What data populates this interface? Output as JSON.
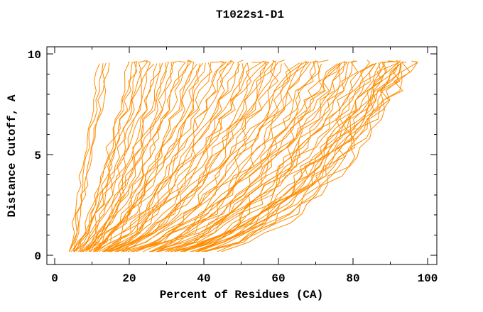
{
  "page": {
    "background": "#ffffff"
  },
  "chart_data": {
    "type": "line",
    "title": "T1022s1-D1",
    "xlabel": "Percent of Residues (CA)",
    "ylabel": "Distance Cutoff, A",
    "xlim": [
      -2,
      102.5
    ],
    "ylim": [
      -0.45,
      10.4
    ],
    "x_major_ticks": [
      0,
      20,
      40,
      60,
      80,
      100
    ],
    "x_minor_ticks": [
      10,
      30,
      50,
      70,
      90
    ],
    "y_major_ticks": [
      0,
      5,
      10
    ],
    "y_minor_ticks": [
      1,
      2,
      3,
      4,
      6,
      7,
      8,
      9
    ],
    "grid": false,
    "legend": "none",
    "series_color": "#ff8c00",
    "series_count": 91,
    "description": "Family of per-model accuracy curves: percent of CA residues (x) fitting under each distance cutoff in Angstroms (y). Each curve rises from ~0.2 A near 4-35% of residues to ~9.6 A, topping out between ~12% and ~96%.",
    "curve_model": {
      "formula": "x(y) = x0 + (x1 - x0) * (y / ytop)^shape, jagged piecewise-linear sampling",
      "y_start": 0.18,
      "y_step": 0.47,
      "y_top_range": [
        9.5,
        9.7
      ],
      "fields": [
        "x0_percent_at_bottom",
        "x1_percent_at_top",
        "shape_exponent"
      ]
    },
    "curves": [
      [
        3.5,
        11.5,
        0.9
      ],
      [
        4,
        12.5,
        0.85
      ],
      [
        4.2,
        13.5,
        0.8
      ],
      [
        3.8,
        14.5,
        0.88
      ],
      [
        4.5,
        20,
        0.75
      ],
      [
        5,
        21,
        0.8
      ],
      [
        4.8,
        21.8,
        0.7
      ],
      [
        5.5,
        22.6,
        0.78
      ],
      [
        4.2,
        23.4,
        0.72
      ],
      [
        5,
        24,
        0.7
      ],
      [
        6,
        25,
        0.65
      ],
      [
        4.6,
        26,
        0.75
      ],
      [
        7,
        27,
        0.6
      ],
      [
        5.2,
        28,
        0.72
      ],
      [
        6.5,
        29,
        0.68
      ],
      [
        4.4,
        30,
        0.62
      ],
      [
        7.5,
        31,
        0.7
      ],
      [
        5.8,
        32,
        0.58
      ],
      [
        6.2,
        33,
        0.74
      ],
      [
        8,
        34,
        0.6
      ],
      [
        5,
        35,
        0.66
      ],
      [
        7.2,
        36,
        0.7
      ],
      [
        6,
        37,
        0.55
      ],
      [
        8.5,
        38,
        0.65
      ],
      [
        5.4,
        39,
        0.6
      ],
      [
        9,
        40,
        0.68
      ],
      [
        6.8,
        41,
        0.58
      ],
      [
        7.6,
        42,
        0.64
      ],
      [
        10,
        43,
        0.6
      ],
      [
        6.4,
        44,
        0.7
      ],
      [
        8.2,
        45,
        0.55
      ],
      [
        9.5,
        46,
        0.62
      ],
      [
        7,
        47,
        0.66
      ],
      [
        10.5,
        48,
        0.58
      ],
      [
        8,
        49.5,
        0.6
      ],
      [
        9,
        50,
        0.6
      ],
      [
        11,
        51,
        0.64
      ],
      [
        9,
        52.5,
        0.56
      ],
      [
        8.8,
        53,
        0.58
      ],
      [
        12,
        54,
        0.6
      ],
      [
        10,
        55.5,
        0.62
      ],
      [
        12.5,
        56,
        0.56
      ],
      [
        13,
        57,
        0.55
      ],
      [
        11.5,
        58.5,
        0.58
      ],
      [
        10.8,
        59,
        0.54
      ],
      [
        12,
        60,
        0.55
      ],
      [
        14,
        61,
        0.5
      ],
      [
        10,
        62,
        0.58
      ],
      [
        16,
        63,
        0.52
      ],
      [
        12.5,
        64,
        0.55
      ],
      [
        18,
        65,
        0.48
      ],
      [
        13,
        66,
        0.56
      ],
      [
        20,
        67,
        0.5
      ],
      [
        14.5,
        68,
        0.52
      ],
      [
        11,
        69,
        0.58
      ],
      [
        22,
        70,
        0.46
      ],
      [
        15,
        71,
        0.54
      ],
      [
        17,
        72,
        0.5
      ],
      [
        24,
        73,
        0.48
      ],
      [
        13.5,
        74,
        0.56
      ],
      [
        19,
        75,
        0.5
      ],
      [
        15,
        75.5,
        0.55
      ],
      [
        25,
        76,
        0.45
      ],
      [
        16,
        77,
        0.52
      ],
      [
        21,
        78,
        0.48
      ],
      [
        26,
        79,
        0.5
      ],
      [
        14,
        80,
        0.55
      ],
      [
        23,
        81,
        0.46
      ],
      [
        18,
        82,
        0.52
      ],
      [
        27,
        83,
        0.48
      ],
      [
        20,
        84,
        0.5
      ],
      [
        28,
        85,
        0.45
      ],
      [
        16.5,
        85.5,
        0.54
      ],
      [
        19,
        86,
        0.53
      ],
      [
        24,
        87,
        0.47
      ],
      [
        29,
        88,
        0.5
      ],
      [
        21,
        89,
        0.46
      ],
      [
        30,
        90,
        0.48
      ],
      [
        23,
        90.3,
        0.5
      ],
      [
        18,
        90.6,
        0.52
      ],
      [
        26,
        91,
        0.45
      ],
      [
        31,
        91.5,
        0.5
      ],
      [
        22,
        92,
        0.47
      ],
      [
        28,
        92.5,
        0.44
      ],
      [
        33,
        93,
        0.48
      ],
      [
        24,
        93.5,
        0.5
      ],
      [
        30,
        94,
        0.45
      ],
      [
        26,
        94.5,
        0.47
      ],
      [
        34,
        95,
        0.44
      ],
      [
        28,
        95.5,
        0.48
      ],
      [
        32,
        96,
        0.45
      ]
    ]
  }
}
